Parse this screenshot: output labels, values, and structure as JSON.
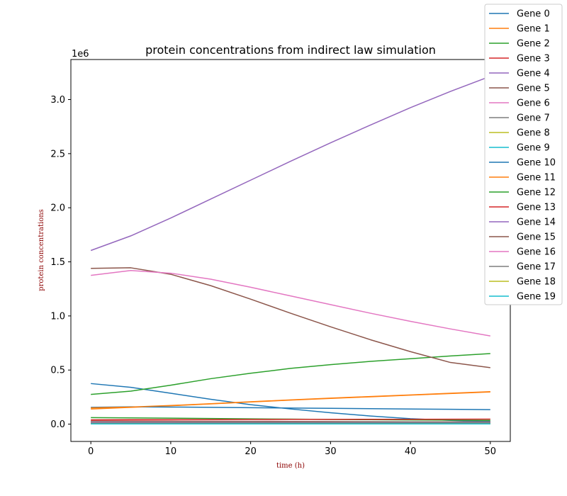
{
  "chart_data": {
    "type": "line",
    "title": "protein concentrations from indirect law simulation",
    "xlabel": "time (h)",
    "ylabel": "protein concentrations",
    "y_offset_text": "1e6",
    "xlim": [
      -2.5,
      52.5
    ],
    "ylim": [
      -160000,
      3370000
    ],
    "x_ticks": [
      0,
      10,
      20,
      30,
      40,
      50
    ],
    "y_ticks": [
      0,
      500000,
      1000000,
      1500000,
      2000000,
      2500000,
      3000000
    ],
    "x_tick_labels": [
      "0",
      "10",
      "20",
      "30",
      "40",
      "50"
    ],
    "y_tick_labels": [
      "0.0",
      "0.5",
      "1.0",
      "1.5",
      "2.0",
      "2.5",
      "3.0"
    ],
    "legend_position": "upper right, outside axes",
    "x": [
      0,
      5,
      10,
      15,
      20,
      25,
      30,
      35,
      40,
      45,
      50
    ],
    "series": [
      {
        "name": "Gene 0",
        "color": "#1f77b4",
        "values": [
          375000,
          340000,
          285000,
          230000,
          180000,
          140000,
          105000,
          75000,
          50000,
          35000,
          25000
        ]
      },
      {
        "name": "Gene 1",
        "color": "#ff7f0e",
        "values": [
          140000,
          155000,
          170000,
          187000,
          205000,
          222000,
          238000,
          253000,
          268000,
          283000,
          298000
        ]
      },
      {
        "name": "Gene 2",
        "color": "#2ca02c",
        "values": [
          60000,
          58000,
          55000,
          52000,
          49000,
          46000,
          43000,
          41000,
          39000,
          37000,
          35000
        ]
      },
      {
        "name": "Gene 3",
        "color": "#d62728",
        "values": [
          30000,
          29000,
          28000,
          27000,
          26000,
          25000,
          24000,
          23000,
          22000,
          21000,
          20000
        ]
      },
      {
        "name": "Gene 4",
        "color": "#9467bd",
        "values": [
          1605000,
          1740000,
          1905000,
          2080000,
          2255000,
          2430000,
          2600000,
          2765000,
          2925000,
          3075000,
          3215000
        ]
      },
      {
        "name": "Gene 5",
        "color": "#8c564b",
        "values": [
          20000,
          19000,
          18000,
          17000,
          16000,
          15000,
          14000,
          13000,
          12000,
          11000,
          10000
        ]
      },
      {
        "name": "Gene 6",
        "color": "#e377c2",
        "values": [
          15000,
          14500,
          14000,
          13500,
          13000,
          12500,
          12000,
          11500,
          11000,
          10500,
          10000
        ]
      },
      {
        "name": "Gene 7",
        "color": "#7f7f7f",
        "values": [
          25000,
          24500,
          24000,
          23500,
          23000,
          22500,
          22000,
          21500,
          21000,
          20500,
          20000
        ]
      },
      {
        "name": "Gene 8",
        "color": "#bcbd22",
        "values": [
          8000,
          7800,
          7600,
          7400,
          7200,
          7000,
          6800,
          6600,
          6400,
          6200,
          6000
        ]
      },
      {
        "name": "Gene 9",
        "color": "#17becf",
        "values": [
          5000,
          4900,
          4800,
          4700,
          4600,
          4500,
          4400,
          4300,
          4200,
          4100,
          4000
        ]
      },
      {
        "name": "Gene 10",
        "color": "#1f77b4",
        "values": [
          155000,
          160000,
          158000,
          155000,
          152000,
          149000,
          146000,
          143000,
          140000,
          137000,
          134000
        ]
      },
      {
        "name": "Gene 11",
        "color": "#ff7f0e",
        "values": [
          150000,
          158000,
          172000,
          189000,
          207000,
          224000,
          240000,
          255000,
          270000,
          285000,
          300000
        ]
      },
      {
        "name": "Gene 12",
        "color": "#2ca02c",
        "values": [
          275000,
          305000,
          360000,
          420000,
          470000,
          515000,
          550000,
          580000,
          605000,
          630000,
          652000
        ]
      },
      {
        "name": "Gene 13",
        "color": "#d62728",
        "values": [
          40000,
          41000,
          42000,
          42500,
          43000,
          43500,
          44000,
          44500,
          45000,
          45500,
          46000
        ]
      },
      {
        "name": "Gene 14",
        "color": "#9467bd",
        "values": [
          12000,
          12000,
          12000,
          12000,
          12000,
          12000,
          12000,
          12000,
          12000,
          12000,
          12000
        ]
      },
      {
        "name": "Gene 15",
        "color": "#8c564b",
        "values": [
          1440000,
          1445000,
          1385000,
          1280000,
          1155000,
          1025000,
          900000,
          780000,
          670000,
          570000,
          522000
        ]
      },
      {
        "name": "Gene 16",
        "color": "#e377c2",
        "values": [
          1375000,
          1420000,
          1395000,
          1340000,
          1265000,
          1185000,
          1105000,
          1025000,
          950000,
          880000,
          815000
        ]
      },
      {
        "name": "Gene 17",
        "color": "#7f7f7f",
        "values": [
          10000,
          10000,
          10000,
          10000,
          10000,
          10000,
          10000,
          10000,
          10000,
          10000,
          10000
        ]
      },
      {
        "name": "Gene 18",
        "color": "#bcbd22",
        "values": [
          3000,
          3000,
          3000,
          3000,
          3000,
          3000,
          3000,
          3000,
          3000,
          3000,
          3000
        ]
      },
      {
        "name": "Gene 19",
        "color": "#17becf",
        "values": [
          2000,
          2000,
          2000,
          2000,
          2000,
          2000,
          2000,
          2000,
          2000,
          2000,
          2000
        ]
      }
    ]
  }
}
